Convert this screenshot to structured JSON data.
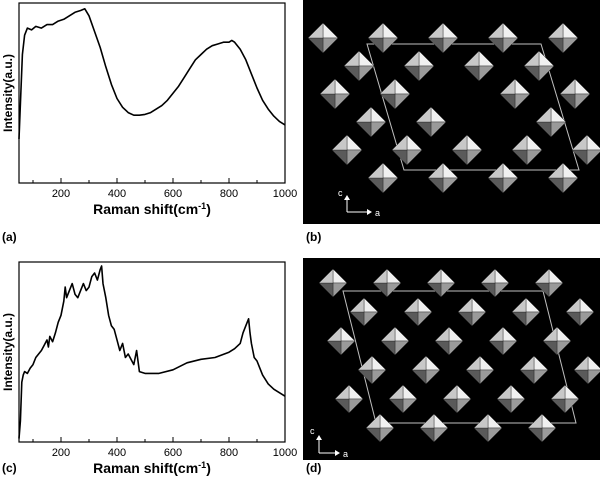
{
  "panel_labels": {
    "a": "(a)",
    "b": "(b)",
    "c": "(c)",
    "d": "(d)"
  },
  "chart_data": [
    {
      "type": "line",
      "panel": "a",
      "xlabel": "Raman shift(cm",
      "xlabel_sup": "-1",
      "xlabel_close": ")",
      "ylabel": "Intensity(a.u.)",
      "xlim": [
        50,
        1000
      ],
      "ylim": [
        0,
        1
      ],
      "ticks": [
        200,
        400,
        600,
        800,
        1000
      ],
      "tick_labels": [
        "200",
        "400",
        "600",
        "800",
        "1000"
      ],
      "x": [
        50,
        55,
        62,
        70,
        80,
        95,
        110,
        130,
        150,
        170,
        190,
        210,
        230,
        250,
        270,
        285,
        300,
        320,
        340,
        360,
        380,
        400,
        420,
        440,
        460,
        480,
        500,
        520,
        540,
        560,
        580,
        600,
        620,
        640,
        660,
        680,
        700,
        720,
        740,
        760,
        780,
        800,
        810,
        820,
        840,
        860,
        880,
        900,
        920,
        940,
        960,
        980,
        1000
      ],
      "values": [
        0.25,
        0.45,
        0.73,
        0.84,
        0.88,
        0.87,
        0.89,
        0.88,
        0.9,
        0.9,
        0.92,
        0.93,
        0.95,
        0.97,
        0.98,
        0.99,
        0.95,
        0.86,
        0.77,
        0.66,
        0.56,
        0.48,
        0.43,
        0.4,
        0.385,
        0.385,
        0.39,
        0.4,
        0.42,
        0.44,
        0.47,
        0.51,
        0.55,
        0.6,
        0.65,
        0.7,
        0.73,
        0.76,
        0.78,
        0.79,
        0.8,
        0.8,
        0.81,
        0.8,
        0.76,
        0.7,
        0.62,
        0.54,
        0.47,
        0.42,
        0.38,
        0.35,
        0.33
      ]
    },
    {
      "type": "line",
      "panel": "c",
      "xlabel": "Raman shift(cm",
      "xlabel_sup": "-1",
      "xlabel_close": ")",
      "ylabel": "Intensity(a.u.)",
      "xlim": [
        50,
        1000
      ],
      "ylim": [
        0,
        1
      ],
      "ticks": [
        200,
        400,
        600,
        800,
        1000
      ],
      "tick_labels": [
        "200",
        "400",
        "600",
        "800",
        "1000"
      ],
      "x": [
        50,
        55,
        60,
        65,
        70,
        80,
        90,
        100,
        110,
        120,
        130,
        140,
        150,
        155,
        160,
        170,
        180,
        190,
        200,
        210,
        215,
        220,
        230,
        240,
        250,
        260,
        270,
        280,
        290,
        300,
        310,
        320,
        330,
        340,
        345,
        350,
        360,
        370,
        380,
        390,
        400,
        410,
        420,
        430,
        440,
        460,
        470,
        480,
        500,
        550,
        600,
        650,
        700,
        750,
        800,
        820,
        840,
        850,
        860,
        870,
        875,
        880,
        890,
        900,
        910,
        920,
        940,
        960,
        980,
        1000
      ],
      "values": [
        0.02,
        0.12,
        0.34,
        0.38,
        0.4,
        0.39,
        0.42,
        0.44,
        0.48,
        0.5,
        0.52,
        0.55,
        0.58,
        0.54,
        0.6,
        0.57,
        0.62,
        0.68,
        0.72,
        0.8,
        0.88,
        0.82,
        0.86,
        0.9,
        0.84,
        0.82,
        0.86,
        0.9,
        0.86,
        0.88,
        0.94,
        0.96,
        0.92,
        0.98,
        1.0,
        0.9,
        0.82,
        0.72,
        0.66,
        0.64,
        0.58,
        0.52,
        0.56,
        0.48,
        0.5,
        0.44,
        0.52,
        0.4,
        0.39,
        0.39,
        0.41,
        0.45,
        0.47,
        0.48,
        0.51,
        0.53,
        0.56,
        0.62,
        0.66,
        0.7,
        0.62,
        0.56,
        0.48,
        0.46,
        0.42,
        0.38,
        0.33,
        0.3,
        0.28,
        0.26
      ]
    }
  ],
  "structures": {
    "b": {
      "axis_up": "c",
      "axis_right": "a"
    },
    "d": {
      "axis_up": "c",
      "axis_right": "a"
    }
  }
}
